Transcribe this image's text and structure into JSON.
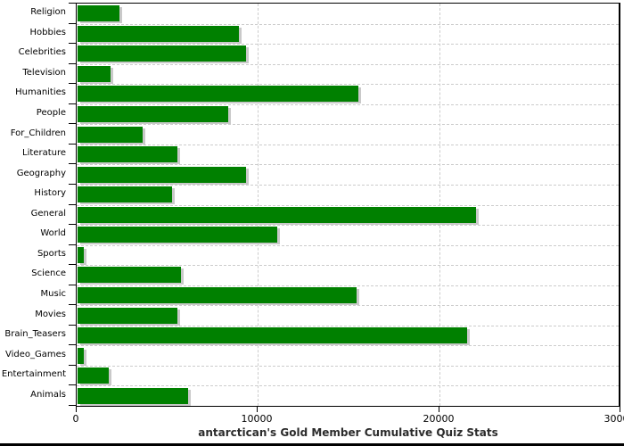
{
  "chart_data": {
    "type": "bar",
    "orientation": "horizontal",
    "title": "antarctican's Gold Member Cumulative Quiz Stats",
    "categories": [
      "Religion",
      "Hobbies",
      "Celebrities",
      "Television",
      "Humanities",
      "People",
      "For_Children",
      "Literature",
      "Geography",
      "History",
      "General",
      "World",
      "Sports",
      "Science",
      "Music",
      "Movies",
      "Brain_Teasers",
      "Video_Games",
      "Entertainment",
      "Animals"
    ],
    "values": [
      2300,
      8900,
      9300,
      1800,
      15500,
      8300,
      3600,
      5500,
      9300,
      5200,
      22000,
      11000,
      350,
      5700,
      15400,
      5500,
      21500,
      350,
      1700,
      6100
    ],
    "xlim": [
      0,
      30000
    ],
    "x_ticks": [
      0,
      10000,
      20000,
      30000
    ],
    "x_tick_labels": [
      "0",
      "10000",
      "20000",
      "30000"
    ],
    "grid": "dashed",
    "legend": "none",
    "colors": {
      "bar_fill": "#008000",
      "bar_shadow": "#c9c9c9",
      "gridline": "#cccccc",
      "axis": "#000000",
      "title_text": "#2b2b2b",
      "label_text": "#000000",
      "background": "#ffffff"
    }
  }
}
